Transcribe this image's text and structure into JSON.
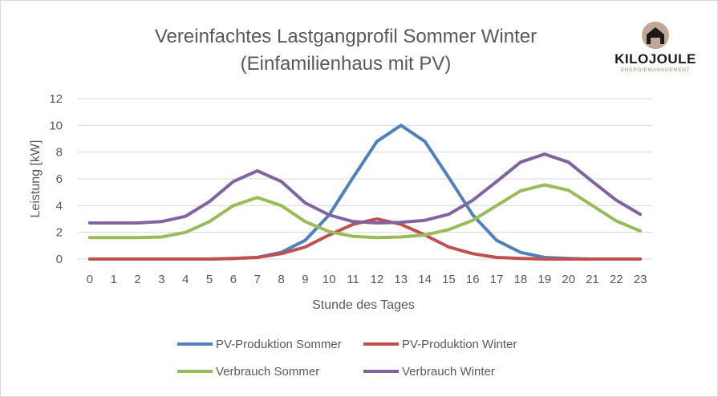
{
  "logo": {
    "name": "KILOJOULE",
    "tagline": "ENERGIEMANAGEMENT",
    "circle_color": "#c0a894"
  },
  "chart_data": {
    "type": "line",
    "title_line1": "Vereinfachtes Lastgangprofil Sommer Winter",
    "title_line2": "(Einfamilienhaus mit PV)",
    "xlabel": "Stunde des Tages",
    "ylabel": "Leistung [kW]",
    "ylim": [
      0,
      12
    ],
    "yticks": [
      0,
      2,
      4,
      6,
      8,
      10,
      12
    ],
    "grid": true,
    "legend_position": "bottom",
    "x": [
      0,
      1,
      2,
      3,
      4,
      5,
      6,
      7,
      8,
      9,
      10,
      11,
      12,
      13,
      14,
      15,
      16,
      17,
      18,
      19,
      20,
      21,
      22,
      23
    ],
    "series": [
      {
        "name": "PV-Produktion Sommer",
        "color": "#4f81bd",
        "values": [
          0,
          0,
          0,
          0,
          0,
          0,
          0.05,
          0.12,
          0.5,
          1.4,
          3.3,
          6.1,
          8.8,
          10.0,
          8.8,
          6.1,
          3.3,
          1.4,
          0.5,
          0.12,
          0.05,
          0,
          0,
          0
        ]
      },
      {
        "name": "PV-Produktion Winter",
        "color": "#c0504d",
        "values": [
          0,
          0,
          0,
          0,
          0,
          0,
          0.05,
          0.12,
          0.4,
          0.9,
          1.8,
          2.6,
          3.0,
          2.6,
          1.8,
          0.9,
          0.4,
          0.12,
          0.05,
          0,
          0,
          0,
          0,
          0
        ]
      },
      {
        "name": "Verbrauch Sommer",
        "color": "#9bbb59",
        "values": [
          1.6,
          1.6,
          1.6,
          1.65,
          2.0,
          2.8,
          4.0,
          4.6,
          4.0,
          2.8,
          2.05,
          1.7,
          1.6,
          1.65,
          1.8,
          2.2,
          2.9,
          4.0,
          5.1,
          5.55,
          5.15,
          4.0,
          2.85,
          2.1
        ]
      },
      {
        "name": "Verbrauch Winter",
        "color": "#8064a2",
        "values": [
          2.7,
          2.7,
          2.7,
          2.8,
          3.2,
          4.3,
          5.8,
          6.6,
          5.8,
          4.2,
          3.3,
          2.8,
          2.7,
          2.75,
          2.9,
          3.35,
          4.4,
          5.8,
          7.25,
          7.85,
          7.25,
          5.8,
          4.4,
          3.35
        ]
      }
    ]
  }
}
